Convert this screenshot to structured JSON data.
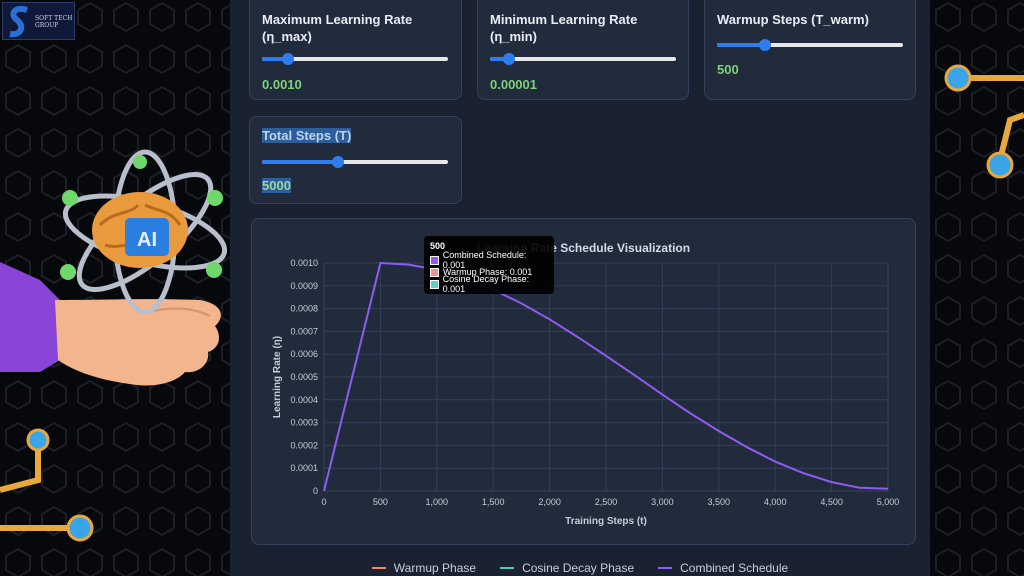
{
  "brand": {
    "text": "SOFT TECH GROUP"
  },
  "controls": [
    {
      "label": "Maximum Learning Rate (η_max)",
      "value": "0.0010",
      "fraction": 0.14
    },
    {
      "label": "Minimum Learning Rate (η_min)",
      "value": "0.00001",
      "fraction": 0.1
    },
    {
      "label": "Warmup Steps (T_warm)",
      "value": "500",
      "fraction": 0.26
    },
    {
      "label": "Total Steps (T)",
      "value": "5000",
      "fraction": 0.41
    }
  ],
  "tooltip": {
    "title": "500",
    "rows": [
      {
        "text": "Combined Schedule: 0.001",
        "color": "#8e5cf0"
      },
      {
        "text": "Warmup Phase: 0.001",
        "color": "#f08f8f"
      },
      {
        "text": "Cosine Decay Phase: 0.001",
        "color": "#5fd1c4"
      }
    ]
  },
  "colors": {
    "warmup": "#f08a6c",
    "cosine": "#52c9b8",
    "combined": "#8e5cf0",
    "slider_accent": "#2f7cf0",
    "value_text": "#7ed17e"
  },
  "chart_data": {
    "type": "line",
    "title": "Learning Rate Schedule Visualization",
    "xlabel": "Training Steps (t)",
    "ylabel": "Learning Rate (η)",
    "xlim": [
      0,
      5000
    ],
    "ylim": [
      0,
      0.001
    ],
    "x_ticks": [
      "0",
      "500",
      "1,000",
      "1,500",
      "2,000",
      "2,500",
      "3,000",
      "3,500",
      "4,000",
      "4,500",
      "5,000"
    ],
    "y_ticks": [
      "0",
      "0.0001",
      "0.0002",
      "0.0003",
      "0.0004",
      "0.0005",
      "0.0006",
      "0.0007",
      "0.0008",
      "0.0009",
      "0.0010"
    ],
    "grid": true,
    "legend_position": "bottom",
    "series": [
      {
        "name": "Warmup Phase"
      },
      {
        "name": "Cosine Decay Phase"
      },
      {
        "name": "Combined Schedule",
        "x": [
          0,
          500,
          750,
          1000,
          1250,
          1500,
          1750,
          2000,
          2250,
          2500,
          2750,
          3000,
          3250,
          3500,
          3750,
          4000,
          4250,
          4500,
          4750,
          5000
        ],
        "y": [
          0,
          0.001,
          0.000993,
          0.00097,
          0.000933,
          0.000883,
          0.000823,
          0.000753,
          0.000675,
          0.000593,
          0.000509,
          0.000423,
          0.00034,
          0.000263,
          0.000192,
          0.000129,
          7.8e-05,
          3.9e-05,
          1.4e-05,
          1e-05
        ]
      }
    ]
  }
}
